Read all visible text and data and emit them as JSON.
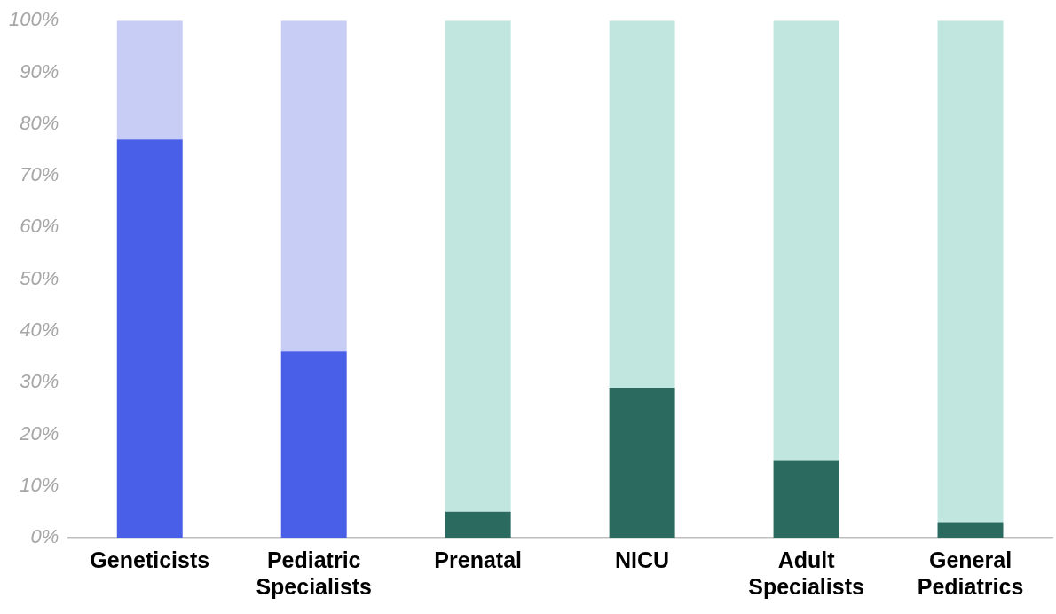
{
  "chart_data": {
    "type": "bar",
    "stacked": true,
    "legend": false,
    "grid": false,
    "categories": [
      "Geneticists",
      "Pediatric Specialists",
      "Prenatal",
      "NICU",
      "Adult Specialists",
      "General Pediatrics"
    ],
    "series": [
      {
        "colors": [
          "#4a5fe8",
          "#4a5fe8",
          "#2b6a5f",
          "#2b6a5f",
          "#2b6a5f",
          "#2b6a5f"
        ],
        "values": [
          77,
          36,
          5,
          29,
          15,
          3
        ]
      },
      {
        "colors": [
          "#c7cdf4",
          "#c7cdf4",
          "#c1e6df",
          "#c1e6df",
          "#c1e6df",
          "#c1e6df"
        ],
        "values": [
          23,
          64,
          95,
          71,
          85,
          97
        ]
      }
    ],
    "ylim": [
      0,
      100
    ],
    "yticks": [
      {
        "value": 0,
        "label": "0%"
      },
      {
        "value": 10,
        "label": "10%"
      },
      {
        "value": 20,
        "label": "20%"
      },
      {
        "value": 30,
        "label": "30%"
      },
      {
        "value": 40,
        "label": "40%"
      },
      {
        "value": 50,
        "label": "50%"
      },
      {
        "value": 60,
        "label": "60%"
      },
      {
        "value": 70,
        "label": "70%"
      },
      {
        "value": 80,
        "label": "80%"
      },
      {
        "value": 90,
        "label": "90%"
      },
      {
        "value": 100,
        "label": "100%"
      }
    ]
  }
}
